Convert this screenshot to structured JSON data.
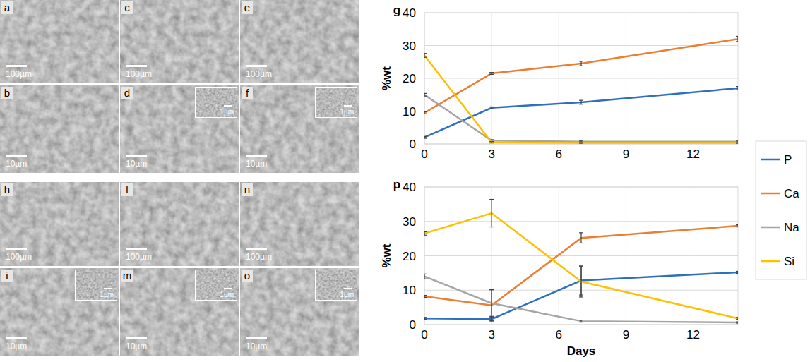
{
  "images": [
    {
      "label": "a",
      "scale_bar": "100µm"
    },
    {
      "label": "c",
      "scale_bar": "100µm"
    },
    {
      "label": "e",
      "scale_bar": "100µm"
    },
    {
      "label": "b",
      "scale_bar": "10µm"
    },
    {
      "label": "d",
      "scale_bar": "10µm",
      "inset_scale_bar": "1µm"
    },
    {
      "label": "f",
      "scale_bar": "10µm",
      "inset_scale_bar": "1µm"
    },
    {
      "label": "h",
      "scale_bar": "100µm"
    },
    {
      "label": "l",
      "scale_bar": "100µm"
    },
    {
      "label": "n",
      "scale_bar": "100µm"
    },
    {
      "label": "i",
      "scale_bar": "10µm",
      "inset_scale_bar": "1µm"
    },
    {
      "label": "m",
      "scale_bar": "10µm",
      "inset_scale_bar": "1µm"
    },
    {
      "label": "o",
      "scale_bar": "10µm",
      "inset_scale_bar": "1µm"
    }
  ],
  "chart_data": [
    {
      "type": "line",
      "title": "g",
      "y_label": "%wt",
      "x": [
        0,
        3,
        7,
        14
      ],
      "xlim": [
        0,
        14
      ],
      "xticks": [
        0,
        3,
        6,
        9,
        12
      ],
      "ylim": [
        0,
        40
      ],
      "yticks": [
        0,
        10,
        20,
        30,
        40
      ],
      "grid": true,
      "legend": "right",
      "series": [
        {
          "name": "P",
          "color": "#2e6fbf",
          "values": [
            2,
            11,
            12.7,
            17
          ],
          "errors": [
            0.3,
            0.3,
            0.6,
            0.5
          ]
        },
        {
          "name": "Ca",
          "color": "#ed7d31",
          "values": [
            9.5,
            21.5,
            24.5,
            32
          ],
          "errors": [
            0.3,
            0.3,
            0.7,
            0.8
          ]
        },
        {
          "name": "Na",
          "color": "#a5a5a5",
          "values": [
            15,
            1,
            0.7,
            0.7
          ],
          "errors": [
            0.4,
            0.3,
            0.2,
            0.2
          ]
        },
        {
          "name": "Si",
          "color": "#ffc000",
          "values": [
            27,
            0.5,
            0.3,
            0.3
          ],
          "errors": [
            0.6,
            0.2,
            0.1,
            0.1
          ]
        }
      ]
    },
    {
      "type": "line",
      "title": "p",
      "x_label": "Days",
      "y_label": "%wt",
      "x": [
        0,
        3,
        7,
        14
      ],
      "xlim": [
        0,
        14
      ],
      "xticks": [
        0,
        3,
        6,
        9,
        12
      ],
      "ylim": [
        0,
        40
      ],
      "yticks": [
        0,
        10,
        20,
        30,
        40
      ],
      "grid": true,
      "series": [
        {
          "color": "#2e6fbf",
          "values": [
            1.8,
            1.6,
            12.8,
            15.2
          ],
          "errors": [
            0.3,
            0.8,
            4.2,
            0.3
          ]
        },
        {
          "color": "#ed7d31",
          "values": [
            8.2,
            5.6,
            25.2,
            28.7
          ],
          "errors": [
            0.3,
            4.5,
            1.5,
            0.3
          ]
        },
        {
          "color": "#a5a5a5",
          "values": [
            14,
            6.2,
            1,
            0.6
          ],
          "errors": [
            0.7,
            4,
            0.3,
            0.2
          ]
        },
        {
          "color": "#ffc000",
          "values": [
            26.5,
            32.4,
            12.5,
            1.8
          ],
          "errors": [
            0.5,
            4,
            4.5,
            0.3
          ]
        }
      ]
    }
  ]
}
